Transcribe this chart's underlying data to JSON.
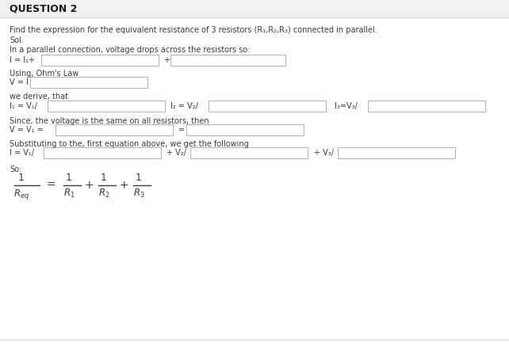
{
  "bg_color": "#ffffff",
  "title": "QUESTION 2",
  "line1": "Find the expression for the equivalent resistance of 3 resistors (R₁,R₂,R₃) connected in parallel.",
  "line2": "Sol.",
  "line3": "In a parallel connection, voltage drops across the resistors so:",
  "line4_text": "I = I₁+",
  "line4_plus": "+",
  "line5": "Using, Ohm's Law",
  "line6_text": "V = I",
  "line7": "we derive, that",
  "line8a": "I₁ = V₁/",
  "line8b": "I₂ = V₂/",
  "line8c": "I₃=V₃/",
  "line9": "Since, the voltage is the same on all resistors, then",
  "line10a": "V = V₁ =",
  "line10b": "=",
  "line11": "Substituting to the, first equation above, we get the following",
  "line12a": "I = V₁/",
  "line12b": "+ V₂/",
  "line12c": "+ V₃/",
  "line13": "So:",
  "box_edge_color": "#b0b0b0",
  "text_color": "#3a3a3a",
  "title_color": "#1a1a1a",
  "bg_color_box": "#ffffff",
  "sep_color": "#cccccc"
}
